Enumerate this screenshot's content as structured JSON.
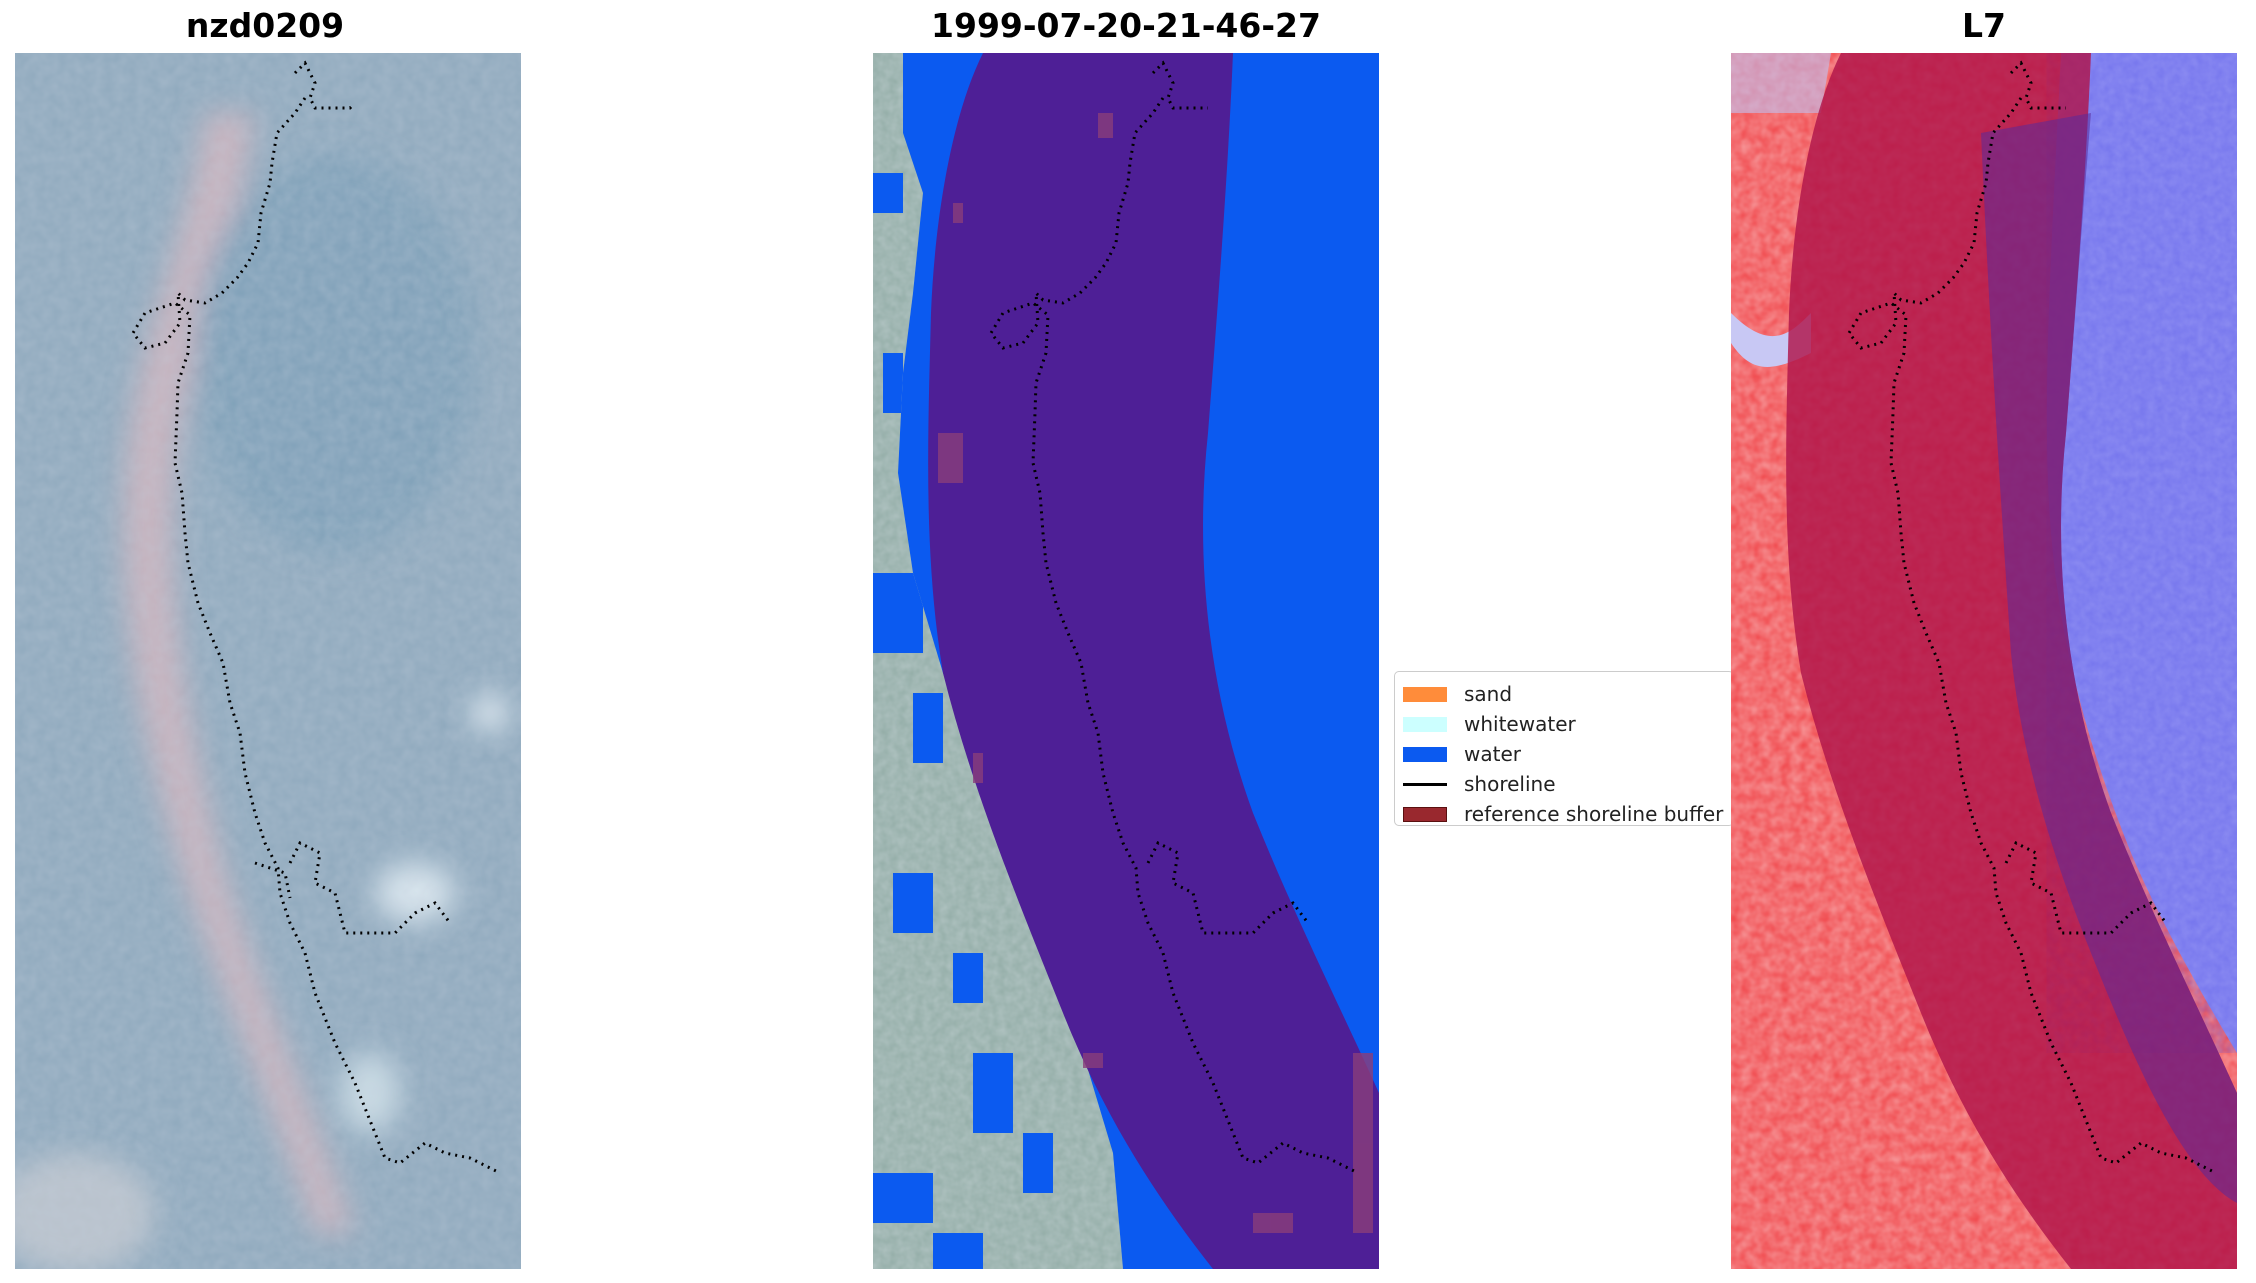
{
  "titles": {
    "panel1": "nzd0209",
    "panel2": "1999-07-20-21-46-27",
    "panel3": "L7"
  },
  "legend": {
    "items": [
      {
        "label": "sand",
        "color": "#ff8c3a",
        "kind": "patch"
      },
      {
        "label": "whitewater",
        "color": "#ccffff",
        "kind": "patch"
      },
      {
        "label": "water",
        "color": "#0b5af0",
        "kind": "patch"
      },
      {
        "label": "shoreline",
        "color": "#000000",
        "kind": "line"
      },
      {
        "label": "reference shoreline buffer",
        "color": "#99282e",
        "kind": "patch"
      }
    ]
  },
  "colors": {
    "rgb_base": "#8ea7bb",
    "rgb_sand": "#c9b3bd",
    "water_blue": "#0b5af0",
    "buffer_purple": "#4e1f96",
    "land_gray": "#8fa7a0",
    "index_red": "#f03c40",
    "index_blue": "#7a7aee",
    "index_buffer": "#a5184d"
  }
}
